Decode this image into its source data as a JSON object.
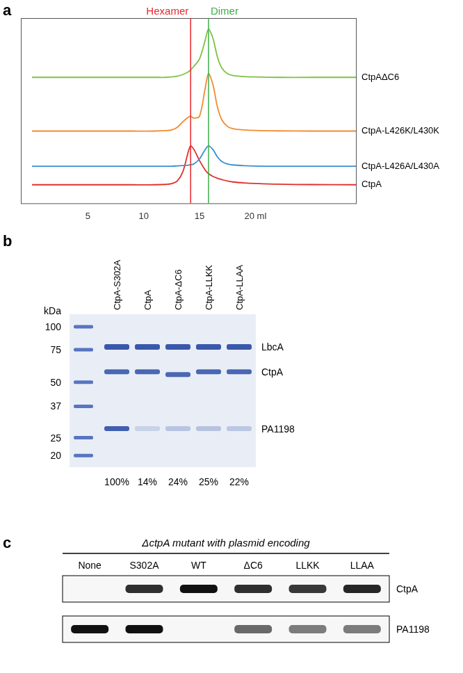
{
  "panel_labels": [
    "a",
    "b",
    "c"
  ],
  "chart_data": {
    "type": "line",
    "x": [
      0,
      3,
      6,
      9,
      11,
      12,
      12.5,
      13,
      13.5,
      14,
      14.2,
      14.5,
      15,
      15.5,
      15.8,
      16.2,
      16.6,
      17,
      17.5,
      18,
      19,
      20,
      22,
      25,
      29
    ],
    "series": [
      {
        "name": "CtpAΔC6",
        "color": "#7cc242",
        "values": [
          68,
          68,
          68,
          68,
          68,
          68,
          68.2,
          68.6,
          69.5,
          71,
          72,
          74,
          78,
          88,
          94,
          89,
          79,
          73,
          70,
          69,
          68.4,
          68.2,
          68,
          68,
          68
        ]
      },
      {
        "name": "CtpA-L426K/L430K",
        "color": "#f28a30",
        "values": [
          39,
          39,
          39,
          39,
          39,
          39.2,
          39.6,
          41,
          44,
          46.5,
          47,
          46,
          47,
          62,
          70,
          64,
          52,
          45,
          41.5,
          40.3,
          39.6,
          39.3,
          39.1,
          39,
          39
        ]
      },
      {
        "name": "CtpA-L426A/L430A",
        "color": "#3a8fd1",
        "values": [
          20,
          20,
          20,
          20,
          20,
          20,
          20,
          20.2,
          20.4,
          20.6,
          20.8,
          21.3,
          24,
          29,
          31,
          29,
          25,
          22.5,
          21.2,
          20.7,
          20.3,
          20.1,
          20,
          20,
          20
        ]
      },
      {
        "name": "CtpA",
        "color": "#e0302a",
        "values": [
          10,
          10,
          10,
          10,
          10,
          10.2,
          10.6,
          12,
          17,
          28,
          31,
          29,
          23,
          18,
          16,
          14.5,
          13.5,
          12.8,
          12,
          11.5,
          11,
          10.7,
          10.3,
          10.1,
          10
        ]
      }
    ],
    "xlim": [
      -1,
      29
    ],
    "xticks": [
      5,
      10,
      15,
      {
        "value": 20,
        "label": "20 ml"
      }
    ],
    "ylim": [
      0,
      100
    ],
    "yticks": [],
    "tick_labels": "x",
    "grid": false,
    "annotations": [
      {
        "text": "Hexamer",
        "x": 14.2,
        "color": "#e8262c"
      },
      {
        "text": "Dimer",
        "x": 15.8,
        "color": "#3fae49"
      }
    ]
  },
  "gel": {
    "axis_label": "kDa",
    "ladder": [
      100,
      75,
      50,
      37,
      25,
      20
    ],
    "lanes": [
      "CtpA-S302A",
      "CtpA",
      "CtpA-ΔC6",
      "CtpA-LLKK",
      "CtpA-LLAA"
    ],
    "bands": [
      {
        "name": "LbcA",
        "kda": [
          78,
          78,
          78,
          78,
          78
        ]
      },
      {
        "name": "CtpA",
        "kda": [
          57,
          57,
          55,
          57,
          57
        ]
      },
      {
        "name": "PA1198",
        "kda": [
          28,
          28,
          28,
          28,
          28
        ],
        "values": [
          100,
          14,
          24,
          25,
          22
        ],
        "value_labels": [
          "100%",
          "14%",
          "24%",
          "25%",
          "22%"
        ]
      }
    ]
  },
  "blot": {
    "title": "ΔctpA mutant with plasmid encoding",
    "lanes": [
      "None",
      "S302A",
      "WT",
      "ΔC6",
      "LLKK",
      "LLAA"
    ],
    "rows": [
      {
        "name": "CtpA",
        "values": [
          0,
          85,
          100,
          85,
          80,
          90
        ]
      },
      {
        "name": "PA1198",
        "values": [
          100,
          100,
          0,
          55,
          45,
          45
        ]
      }
    ]
  }
}
